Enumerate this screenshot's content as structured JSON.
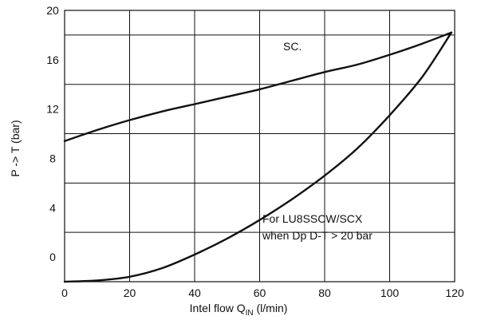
{
  "chart_data": {
    "type": "line",
    "xlabel": {
      "prefix": "Intel flow Q",
      "subscript": "IN",
      "suffix": " (l/min)"
    },
    "ylabel": "P -> T (bar)",
    "xlim": [
      0,
      120
    ],
    "ylim": [
      -2,
      20
    ],
    "x_ticks": [
      0,
      20,
      40,
      60,
      80,
      100,
      120
    ],
    "x_tick_labels": [
      "0",
      "20",
      "40",
      "60",
      "80",
      "100",
      "120"
    ],
    "y_grid": [
      2,
      6,
      10,
      14,
      18
    ],
    "y_tick_labels": [
      {
        "value": 20,
        "label": "20"
      },
      {
        "value": 16,
        "label": "16"
      },
      {
        "value": 12,
        "label": "12"
      },
      {
        "value": 8,
        "label": "8"
      },
      {
        "value": 4,
        "label": "4"
      },
      {
        "value": 0,
        "label": "0"
      }
    ],
    "grid": true,
    "series": [
      {
        "name": "SC.",
        "x": [
          0,
          10,
          20,
          30,
          40,
          50,
          60,
          70,
          80,
          90,
          100,
          110,
          119
        ],
        "y": [
          9.4,
          10.3,
          11.1,
          11.8,
          12.4,
          13.0,
          13.6,
          14.3,
          15.0,
          15.6,
          16.4,
          17.3,
          18.2
        ]
      },
      {
        "name": "For LU8SSCW/SCX when Dp D-T > 20 bar",
        "x": [
          0,
          10,
          20,
          30,
          40,
          50,
          60,
          70,
          80,
          90,
          100,
          110,
          119
        ],
        "y": [
          -2.0,
          -1.9,
          -1.6,
          -0.9,
          0.2,
          1.5,
          3.0,
          4.7,
          6.6,
          8.8,
          11.5,
          14.6,
          18.2
        ]
      }
    ],
    "annotations": {
      "sc_label": "SC.",
      "lu_line1": "For LU8SSCW/SCX",
      "lu_line2": "when Dp D-T > 20 bar"
    }
  }
}
